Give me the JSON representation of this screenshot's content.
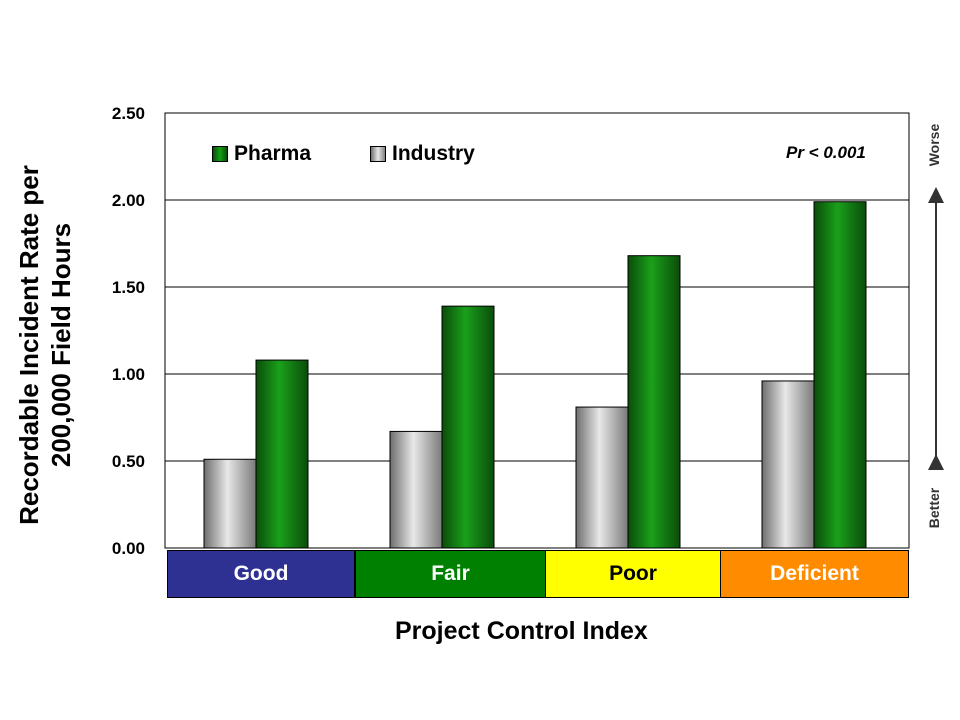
{
  "chart_data": {
    "type": "bar",
    "categories": [
      "Good",
      "Fair",
      "Poor",
      "Deficient"
    ],
    "category_colors": [
      "#2e3192",
      "#008000",
      "#ffff00",
      "#ff8c00"
    ],
    "series": [
      {
        "name": "Industry",
        "values": [
          0.51,
          0.67,
          0.81,
          0.96
        ],
        "color": "#b0b0b0"
      },
      {
        "name": "Pharma",
        "values": [
          1.08,
          1.39,
          1.68,
          1.99
        ],
        "color": "#008000"
      }
    ],
    "ylabel": "Recordable Incident Rate per 200,000 Field Hours",
    "xlabel": "Project Control Index",
    "ylim": [
      0,
      2.5
    ],
    "yticks": [
      "0.00",
      "0.50",
      "1.00",
      "1.50",
      "2.00",
      "2.50"
    ],
    "grid": true,
    "legend_position": "top-left",
    "annotation": "Pr < 0.001",
    "side_labels": {
      "top": "Worse",
      "bottom": "Better"
    }
  }
}
